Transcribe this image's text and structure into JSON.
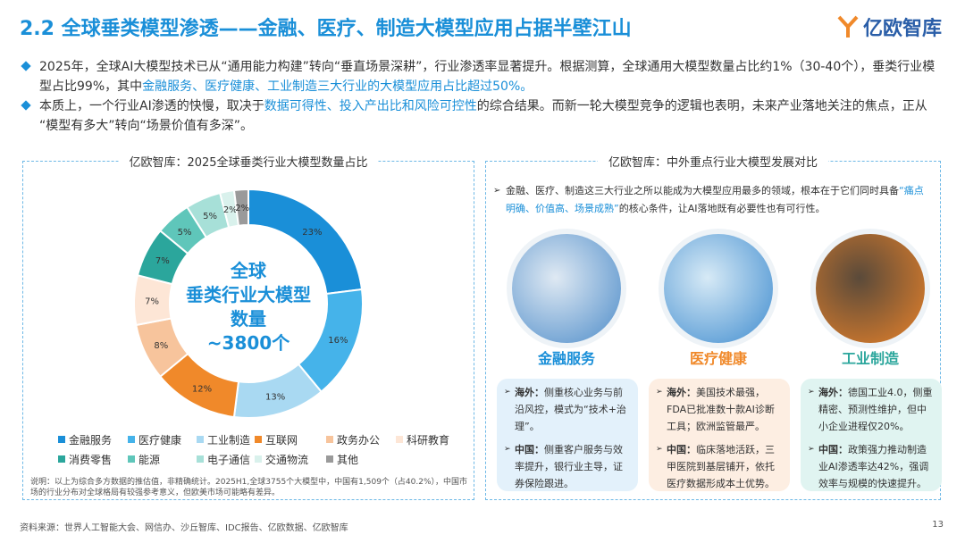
{
  "header": {
    "title": "2.2 全球垂类模型渗透——金融、医疗、制造大模型应用占据半壁江山",
    "logo": "亿欧智库"
  },
  "bullets": [
    [
      "2025年，全球AI大模型技术已从“通用能力构建”转向“垂直场景深耕”，行业渗透率显著提升。根据测算，全球通用大模型数量占比约1%（30-40个），垂类行业模型占比99%，其中",
      "金融服务、医疗健康、工业制造三大行业的大模型应用占比超过50%。"
    ],
    [
      "本质上，一个行业AI渗透的快慢，取决于",
      "数据可得性、投入产出比和风险可控性",
      "的综合结果。而新一轮大模型竞争的逻辑也表明，未来产业落地关注的焦点，正从“模型有多大”转向“场景价值有多深”。"
    ]
  ],
  "chart_data": {
    "type": "donut",
    "title": "亿欧智库：2025全球垂类行业大模型数量占比",
    "center_text": [
      "全球",
      "垂类行业大模型",
      "数量",
      "~3800个"
    ],
    "categories": [
      "金融服务",
      "医疗健康",
      "工业制造",
      "互联网",
      "政务办公",
      "科研教育",
      "消费零售",
      "能源",
      "电子通信",
      "交通物流",
      "其他"
    ],
    "values": [
      23,
      16,
      13,
      12,
      8,
      7,
      7,
      5,
      5,
      2,
      2
    ],
    "value_labels": [
      "23%",
      "16%",
      "13%",
      "12%",
      "8%",
      "7%",
      "7%",
      "5%",
      "5%",
      "2%",
      "2%"
    ],
    "colors": [
      "#1a8fd8",
      "#45b3ea",
      "#a9d9f2",
      "#f0892a",
      "#f7c49c",
      "#fde6d6",
      "#2ba69c",
      "#5fc6ba",
      "#a7e0d8",
      "#d9f1ec",
      "#9a9a9a"
    ],
    "note": "说明：以上为综合多方数据的推估值，非精确统计。2025H1,全球3755个大模型中，中国有1,509个（占40.2%），中国市场的行业分布对全球格局有较强参考意义，但欧美市场可能略有差异。"
  },
  "comparison": {
    "title": "亿欧智库：中外重点行业大模型发展对比",
    "intro": [
      "金融、医疗、制造这三大行业之所以能成为大模型应用最多的领域，根本在于它们同时具备",
      "“痛点明确、价值高、场景成熟”",
      "的核心条件，让AI落地既有必要性也有可行性。"
    ],
    "columns": [
      {
        "name": "金融服务",
        "items": [
          {
            "label": "海外：",
            "text": "侧重核心业务与前沿风控，模式为“技术+治理”。"
          },
          {
            "label": "中国：",
            "text": "侧重客户服务与效率提升，银行业主导，证券保险跟进。"
          }
        ]
      },
      {
        "name": "医疗健康",
        "items": [
          {
            "label": "海外：",
            "text": "美国技术最强，FDA已批准数十款AI诊断工具；欧洲监管最严。"
          },
          {
            "label": "中国：",
            "text": "临床落地活跃，三甲医院到基层铺开，依托医疗数据形成本土优势。"
          }
        ]
      },
      {
        "name": "工业制造",
        "items": [
          {
            "label": "海外：",
            "text": "德国工业4.0，侧重精密、预测性维护，但中小企业进程仅20%。"
          },
          {
            "label": "中国：",
            "text": "政策强力推动制造业AI渗透率达42%，强调效率与规模的快速提升。"
          }
        ]
      }
    ]
  },
  "footer": {
    "source": "资料来源：世界人工智能大会、网信办、沙丘智库、IDC报告、亿欧数据、亿欧智库",
    "page": "13"
  }
}
